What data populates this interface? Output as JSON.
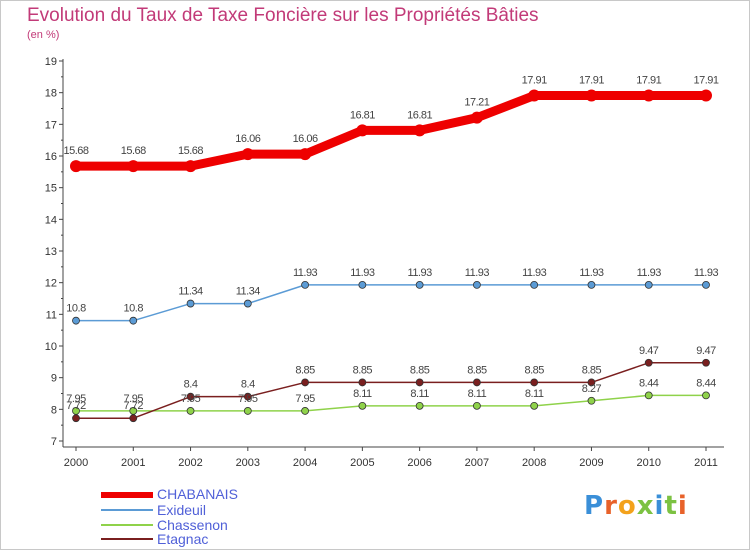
{
  "header": {
    "title": "Evolution du Taux de Taxe Foncière sur les Propriétés Bâties",
    "subtitle": "(en %)"
  },
  "logo": {
    "text": "Proxiti",
    "letters": [
      "P",
      "r",
      "o",
      "x",
      "i",
      "t",
      "i"
    ],
    "colors": [
      "#3a8fd8",
      "#e8622a",
      "#f3a21c",
      "#7cc242",
      "#3a8fd8",
      "#7cc242",
      "#e8622a"
    ]
  },
  "chart_data": {
    "type": "line",
    "title": "Evolution du Taux de Taxe Foncière sur les Propriétés Bâties",
    "ylabel": "(en %)",
    "xlabel": "",
    "ylim": [
      7,
      19
    ],
    "yticks": [
      7,
      8,
      9,
      10,
      11,
      12,
      13,
      14,
      15,
      16,
      17,
      18,
      19
    ],
    "categories": [
      "2000",
      "2001",
      "2002",
      "2003",
      "2004",
      "2005",
      "2006",
      "2007",
      "2008",
      "2009",
      "2010",
      "2011"
    ],
    "legend_position": "bottom-left",
    "grid": false,
    "series": [
      {
        "name": "CHABANAIS",
        "color": "#ee0000",
        "values": [
          15.68,
          15.68,
          15.68,
          16.06,
          16.06,
          16.81,
          16.81,
          17.21,
          17.91,
          17.91,
          17.91,
          17.91
        ],
        "labels": [
          "15.68",
          "15.68",
          "15.68",
          "16.06",
          "16.06",
          "16.81",
          "16.81",
          "17.21",
          "17.91",
          "17.91",
          "17.91",
          "17.91"
        ]
      },
      {
        "name": "Exideuil",
        "color": "#5b9bd5",
        "values": [
          10.8,
          10.8,
          11.34,
          11.34,
          11.93,
          11.93,
          11.93,
          11.93,
          11.93,
          11.93,
          11.93,
          11.93
        ],
        "labels": [
          "10.8",
          "10.8",
          "11.34",
          "11.34",
          "11.93",
          "11.93",
          "11.93",
          "11.93",
          "11.93",
          "11.93",
          "11.93",
          "11.93"
        ]
      },
      {
        "name": "Chassenon",
        "color": "#8fd24a",
        "values": [
          7.95,
          7.95,
          7.95,
          7.95,
          7.95,
          8.11,
          8.11,
          8.11,
          8.11,
          8.27,
          8.44,
          8.44
        ],
        "labels": [
          "7.95",
          "7.95",
          "7.95",
          "7.95",
          "7.95",
          "8.11",
          "8.11",
          "8.11",
          "8.11",
          "8.27",
          "8.44",
          "8.44"
        ]
      },
      {
        "name": "Etagnac",
        "color": "#7a1f1f",
        "values": [
          7.72,
          7.72,
          8.4,
          8.4,
          8.85,
          8.85,
          8.85,
          8.85,
          8.85,
          8.85,
          9.47,
          9.47
        ],
        "labels": [
          "7.72",
          "7.72",
          "8.4",
          "8.4",
          "8.85",
          "8.85",
          "8.85",
          "8.85",
          "8.85",
          "8.85",
          "9.47",
          "9.47"
        ]
      }
    ]
  }
}
